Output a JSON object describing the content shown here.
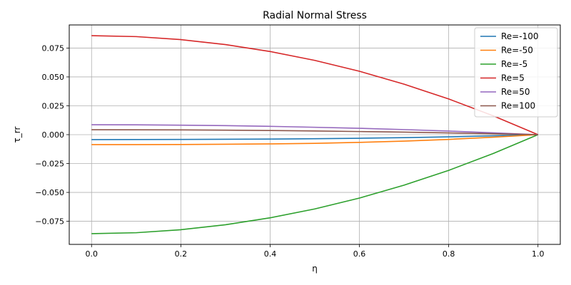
{
  "chart_data": {
    "type": "line",
    "title": "Radial Normal Stress",
    "xlabel": "η",
    "ylabel": "τ_rr",
    "xlim": [
      -0.05,
      1.05
    ],
    "ylim": [
      -0.095,
      0.095
    ],
    "x_ticks": [
      0.0,
      0.2,
      0.4,
      0.6,
      0.8,
      1.0
    ],
    "x_tick_labels": [
      "0.0",
      "0.2",
      "0.4",
      "0.6",
      "0.8",
      "1.0"
    ],
    "y_ticks": [
      -0.075,
      -0.05,
      -0.025,
      0.0,
      0.025,
      0.05,
      0.075
    ],
    "y_tick_labels": [
      "−0.075",
      "−0.050",
      "−0.025",
      "0.000",
      "0.025",
      "0.050",
      "0.075"
    ],
    "grid": true,
    "legend_position": "top-right",
    "x": [
      0.0,
      0.1,
      0.2,
      0.3,
      0.4,
      0.5,
      0.6,
      0.7,
      0.8,
      0.9,
      1.0
    ],
    "series": [
      {
        "name": "Re=-100",
        "color": "#1f77b4",
        "values": [
          -0.0043,
          -0.0042,
          -0.0041,
          -0.004,
          -0.0038,
          -0.0035,
          -0.0031,
          -0.0026,
          -0.0019,
          -0.001,
          0.0
        ]
      },
      {
        "name": "Re=-50",
        "color": "#ff7f0e",
        "values": [
          -0.0086,
          -0.0086,
          -0.0085,
          -0.0083,
          -0.008,
          -0.0075,
          -0.0067,
          -0.0056,
          -0.0041,
          -0.0022,
          0.0
        ]
      },
      {
        "name": "Re=-5",
        "color": "#2ca02c",
        "values": [
          -0.0857,
          -0.0849,
          -0.0823,
          -0.078,
          -0.072,
          -0.0643,
          -0.0549,
          -0.0437,
          -0.0309,
          -0.0163,
          0.0
        ]
      },
      {
        "name": "Re=5",
        "color": "#d62728",
        "values": [
          0.0857,
          0.0849,
          0.0823,
          0.078,
          0.072,
          0.0643,
          0.0549,
          0.0437,
          0.0309,
          0.0163,
          0.0
        ]
      },
      {
        "name": "Re=50",
        "color": "#9467bd",
        "values": [
          0.0086,
          0.0085,
          0.0082,
          0.0078,
          0.0072,
          0.0064,
          0.0055,
          0.0044,
          0.0031,
          0.0016,
          0.0
        ]
      },
      {
        "name": "Re=100",
        "color": "#8c564b",
        "values": [
          0.0043,
          0.0042,
          0.0041,
          0.0039,
          0.0036,
          0.0032,
          0.0027,
          0.0022,
          0.0015,
          0.0008,
          0.0
        ]
      }
    ]
  }
}
